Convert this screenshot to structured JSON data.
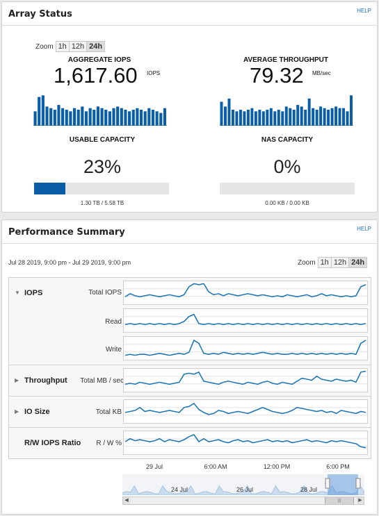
{
  "array_status": {
    "title": "Array Status",
    "help": "HELP",
    "zoom": {
      "label": "Zoom",
      "options": [
        "1h",
        "12h",
        "24h"
      ],
      "active": "24h"
    },
    "iops": {
      "label": "AGGREGATE IOPS",
      "value": "1,617.60",
      "unit": "IOPS",
      "bars": [
        0.45,
        0.9,
        0.95,
        0.6,
        0.55,
        0.5,
        0.65,
        0.55,
        0.5,
        0.45,
        0.55,
        0.5,
        0.6,
        0.45,
        0.55,
        0.5,
        0.6,
        0.55,
        0.5,
        0.45,
        0.55,
        0.6,
        0.55,
        0.5,
        0.45,
        0.5,
        0.55,
        0.5,
        0.45,
        0.55,
        0.5,
        0.45,
        0.4,
        0.55
      ]
    },
    "throughput": {
      "label": "AVERAGE THROUGHPUT",
      "value": "79.32",
      "unit": "MB/sec",
      "bars": [
        0.75,
        0.6,
        0.85,
        0.5,
        0.45,
        0.5,
        0.45,
        0.5,
        0.55,
        0.45,
        0.5,
        0.45,
        0.5,
        0.55,
        0.45,
        0.5,
        0.45,
        0.6,
        0.55,
        0.5,
        0.65,
        0.6,
        0.5,
        0.85,
        0.55,
        0.5,
        0.6,
        0.55,
        0.5,
        0.55,
        0.6,
        0.55,
        0.55,
        0.45,
        0.95
      ]
    },
    "usable": {
      "label": "USABLE CAPACITY",
      "percent": "23%",
      "fill": 0.23,
      "detail": "1.30 TB / 5.58 TB"
    },
    "nas": {
      "label": "NAS CAPACITY",
      "percent": "0%",
      "fill": 0,
      "detail": "0.00 KB / 0.00 KB"
    }
  },
  "performance": {
    "title": "Performance Summary",
    "help": "HELP",
    "date_range": "Jul 28 2019, 9:00 pm - Jul 29 2019, 9:00 pm",
    "zoom": {
      "label": "Zoom",
      "options": [
        "1h",
        "12h",
        "24h"
      ],
      "active": "24h"
    },
    "rows": [
      {
        "name": "IOPS",
        "expanded": true,
        "series": [
          {
            "label": "Total IOPS",
            "values": [
              0.3,
              0.45,
              0.35,
              0.3,
              0.35,
              0.4,
              0.35,
              0.3,
              0.35,
              0.4,
              0.35,
              0.3,
              0.4,
              0.8,
              0.95,
              0.9,
              0.95,
              0.55,
              0.4,
              0.45,
              0.35,
              0.45,
              0.4,
              0.35,
              0.4,
              0.45,
              0.4,
              0.35,
              0.4,
              0.35,
              0.3,
              0.35,
              0.3,
              0.4,
              0.35,
              0.3,
              0.35,
              0.4,
              0.3,
              0.35,
              0.45,
              0.35,
              0.4,
              0.35,
              0.3,
              0.35,
              0.3,
              0.35,
              0.8,
              0.9
            ]
          },
          {
            "label": "Read",
            "values": [
              0.3,
              0.35,
              0.3,
              0.35,
              0.3,
              0.35,
              0.3,
              0.35,
              0.3,
              0.35,
              0.3,
              0.35,
              0.45,
              0.7,
              0.8,
              0.35,
              0.3,
              0.35,
              0.3,
              0.35,
              0.3,
              0.35,
              0.3,
              0.35,
              0.3,
              0.35,
              0.3,
              0.35,
              0.3,
              0.35,
              0.3,
              0.35,
              0.3,
              0.35,
              0.3,
              0.35,
              0.3,
              0.35,
              0.3,
              0.35,
              0.3,
              0.35,
              0.3,
              0.35,
              0.3,
              0.35,
              0.3,
              0.35,
              0.3,
              0.35
            ]
          },
          {
            "label": "Write",
            "values": [
              0.15,
              0.2,
              0.15,
              0.2,
              0.2,
              0.15,
              0.2,
              0.25,
              0.2,
              0.15,
              0.2,
              0.25,
              0.2,
              0.3,
              0.9,
              0.75,
              0.25,
              0.2,
              0.25,
              0.2,
              0.3,
              0.25,
              0.2,
              0.25,
              0.2,
              0.25,
              0.2,
              0.25,
              0.3,
              0.25,
              0.2,
              0.25,
              0.2,
              0.2,
              0.25,
              0.2,
              0.25,
              0.2,
              0.25,
              0.2,
              0.25,
              0.2,
              0.25,
              0.2,
              0.25,
              0.2,
              0.25,
              0.2,
              0.75,
              0.9
            ]
          }
        ]
      },
      {
        "name": "Throughput",
        "expanded": false,
        "series": [
          {
            "label": "Total MB / sec",
            "values": [
              0.3,
              0.35,
              0.3,
              0.4,
              0.35,
              0.3,
              0.35,
              0.4,
              0.35,
              0.3,
              0.35,
              0.4,
              0.8,
              0.85,
              0.8,
              0.9,
              0.45,
              0.4,
              0.35,
              0.3,
              0.4,
              0.45,
              0.4,
              0.35,
              0.3,
              0.4,
              0.35,
              0.3,
              0.4,
              0.45,
              0.35,
              0.3,
              0.4,
              0.35,
              0.3,
              0.45,
              0.6,
              0.55,
              0.5,
              0.7,
              0.55,
              0.5,
              0.45,
              0.55,
              0.5,
              0.45,
              0.5,
              0.4,
              0.9,
              0.95
            ]
          }
        ]
      },
      {
        "name": "IO Size",
        "expanded": false,
        "series": [
          {
            "label": "Total KB",
            "values": [
              0.45,
              0.5,
              0.55,
              0.7,
              0.5,
              0.55,
              0.5,
              0.45,
              0.5,
              0.55,
              0.5,
              0.45,
              0.7,
              0.75,
              0.9,
              0.6,
              0.45,
              0.35,
              0.4,
              0.55,
              0.5,
              0.4,
              0.45,
              0.5,
              0.45,
              0.4,
              0.5,
              0.6,
              0.7,
              0.6,
              0.5,
              0.45,
              0.4,
              0.45,
              0.55,
              0.7,
              0.65,
              0.6,
              0.55,
              0.5,
              0.55,
              0.45,
              0.5,
              0.4,
              0.55,
              0.5,
              0.45,
              0.4,
              0.5,
              0.45
            ]
          }
        ]
      },
      {
        "name": "R/W IOPS Ratio",
        "expanded": false,
        "series": [
          {
            "label": "R / W %",
            "values": [
              0.55,
              0.7,
              0.6,
              0.65,
              0.6,
              0.55,
              0.6,
              0.7,
              0.55,
              0.65,
              0.6,
              0.55,
              0.65,
              0.8,
              0.9,
              0.55,
              0.7,
              0.55,
              0.6,
              0.65,
              0.55,
              0.5,
              0.6,
              0.65,
              0.55,
              0.6,
              0.5,
              0.55,
              0.6,
              0.65,
              0.55,
              0.6,
              0.55,
              0.6,
              0.5,
              0.55,
              0.6,
              0.65,
              0.55,
              0.6,
              0.55,
              0.5,
              0.6,
              0.55,
              0.6,
              0.55,
              0.5,
              0.45,
              0.3,
              0.25
            ]
          }
        ]
      }
    ],
    "time_ticks": [
      "29 Jul",
      "6:00 AM",
      "12:00 PM",
      "6:00 PM"
    ],
    "navigator_labels": [
      "24 Jul",
      "26 Jul",
      "28 Jul"
    ]
  },
  "colors": {
    "accent": "#0a5ea8",
    "line": "#1f77b4"
  }
}
